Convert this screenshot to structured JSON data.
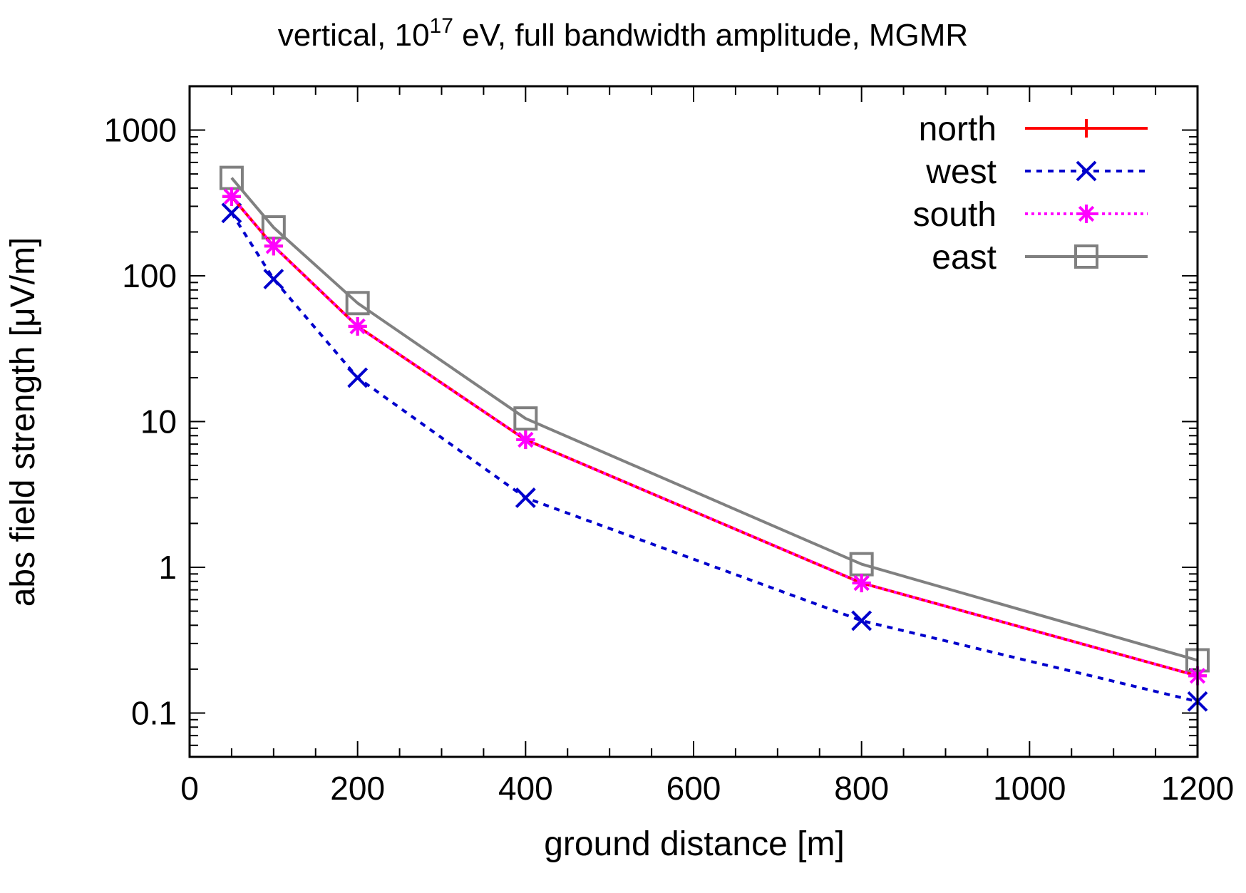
{
  "chart_data": {
    "type": "line",
    "title": {
      "pre": "vertical, 10",
      "sup": "17",
      "post": " eV, full bandwidth amplitude, MGMR"
    },
    "xlabel": "ground distance [m]",
    "ylabel": "abs field strength [μV/m]",
    "xlim": [
      0,
      1200
    ],
    "ylim": [
      0.05,
      2000
    ],
    "yscale": "log",
    "x_ticks": [
      0,
      200,
      400,
      600,
      800,
      1000,
      1200
    ],
    "x_tick_labels": [
      "0",
      "200",
      "400",
      "600",
      "800",
      "1000",
      "1200"
    ],
    "y_ticks": [
      0.1,
      1,
      10,
      100,
      1000
    ],
    "y_tick_labels": [
      "0.1",
      "1",
      "10",
      "100",
      "1000"
    ],
    "grid": false,
    "legend_position": "top-right",
    "x": [
      50,
      100,
      200,
      400,
      800,
      1200
    ],
    "series": [
      {
        "name": "north",
        "values": [
          350,
          160,
          45,
          7.5,
          0.78,
          0.18
        ],
        "color": "#ff0000",
        "marker": "plus",
        "line": "solid"
      },
      {
        "name": "west",
        "values": [
          270,
          95,
          20,
          3.0,
          0.43,
          0.12
        ],
        "color": "#0000cc",
        "marker": "cross",
        "line": "dotted"
      },
      {
        "name": "south",
        "values": [
          350,
          160,
          45,
          7.5,
          0.78,
          0.18
        ],
        "color": "#ff00ff",
        "marker": "asterisk",
        "line": "dotted"
      },
      {
        "name": "east",
        "values": [
          470,
          215,
          65,
          10.5,
          1.05,
          0.23
        ],
        "color": "#808080",
        "marker": "square",
        "line": "solid"
      }
    ]
  }
}
